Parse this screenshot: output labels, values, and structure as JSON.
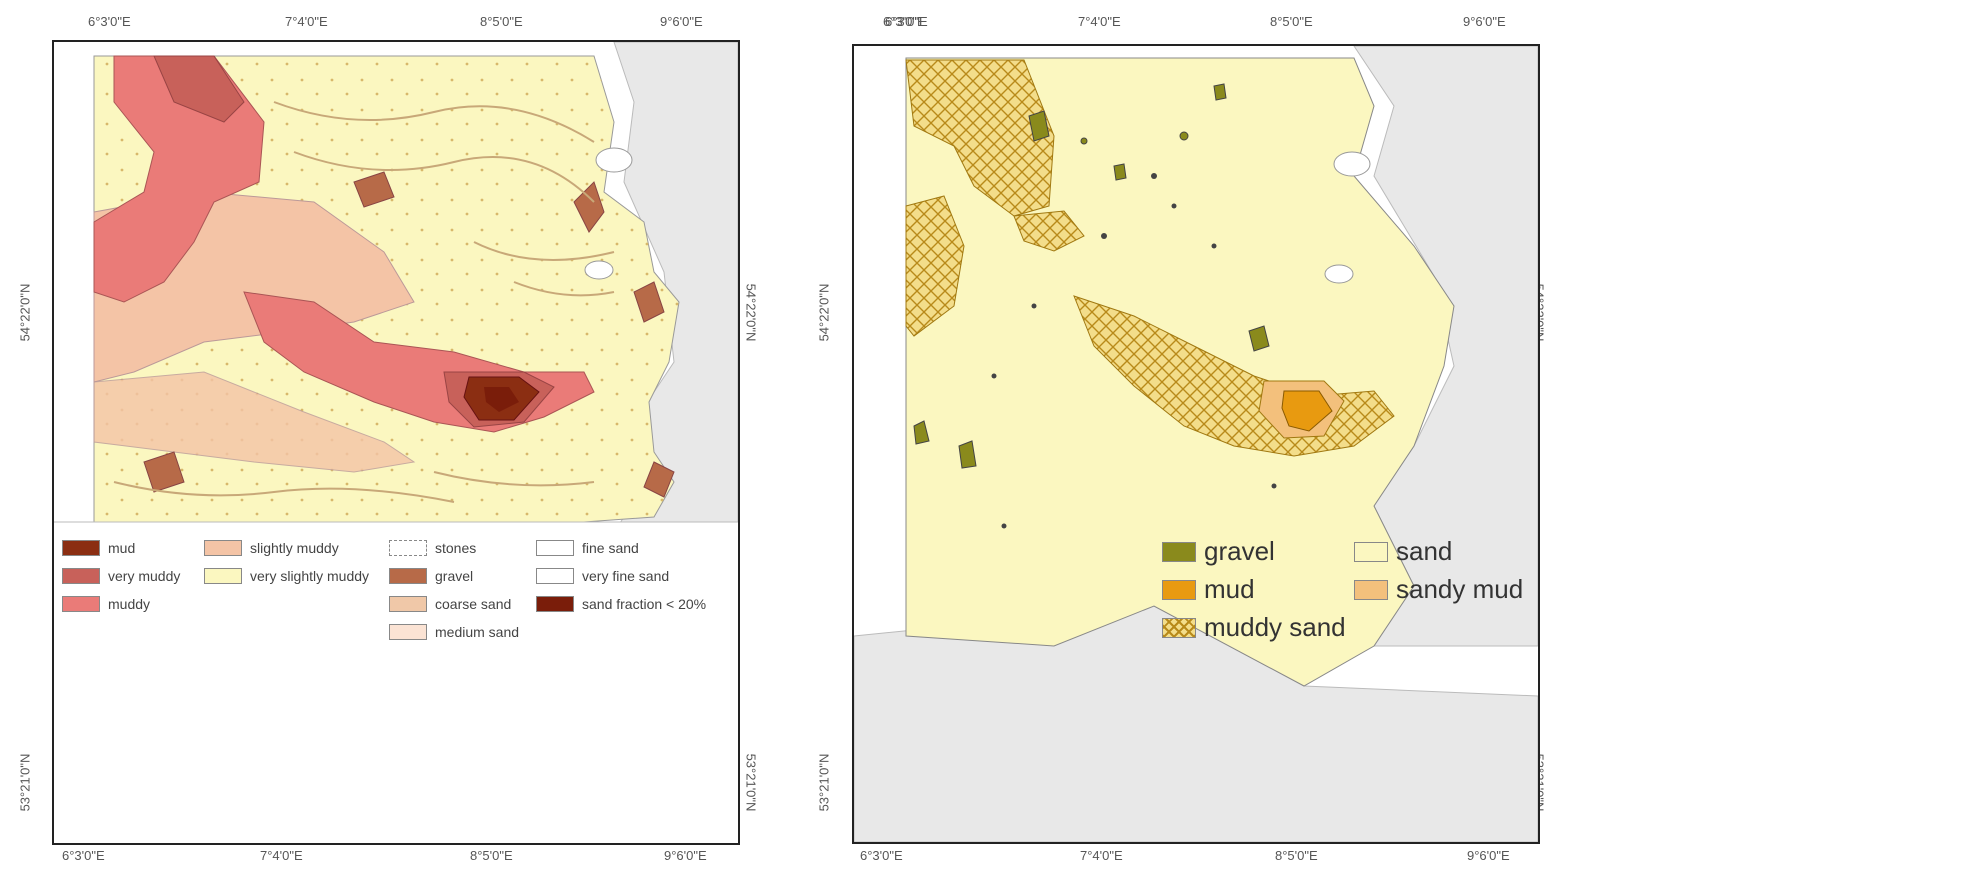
{
  "left_map": {
    "top_ticks": [
      "6°3'0\"E",
      "7°4'0\"E",
      "8°5'0\"E",
      "9°6'0\"E"
    ],
    "bottom_ticks": [
      "6°3'0\"E",
      "7°4'0\"E",
      "8°5'0\"E",
      "9°6'0\"E"
    ],
    "left_ticks": [
      "54°22'0\"N",
      "53°21'0\"N"
    ],
    "right_ticks": [
      "54°22'0\"N",
      "53°21'0\"N"
    ],
    "legend": [
      {
        "label": "mud",
        "color": "#8b2e12"
      },
      {
        "label": "very muddy",
        "color": "#c8615a"
      },
      {
        "label": "muddy",
        "color": "#ea7b78"
      },
      {
        "label": "slightly muddy",
        "color": "#f4c4a6"
      },
      {
        "label": "very slightly muddy",
        "color": "#fbf7c0"
      },
      {
        "label": "stones",
        "color": "#ffffff"
      },
      {
        "label": "gravel",
        "color": "#b76a48"
      },
      {
        "label": "coarse sand",
        "color": "#f0c8a8"
      },
      {
        "label": "medium sand",
        "color": "#fbe3d4"
      },
      {
        "label": "fine sand",
        "color": "#ffffff"
      },
      {
        "label": "very fine sand",
        "color": "#ffffff"
      },
      {
        "label": "sand fraction < 20%",
        "color": "#7a1d0a"
      }
    ]
  },
  "right_map": {
    "top_ticks": [
      "6°3'0\"E",
      "7°4'0\"E",
      "8°5'0\"E",
      "9°6'0\"E"
    ],
    "bottom_ticks": [
      "6°3'0\"E",
      "7°4'0\"E",
      "8°5'0\"E",
      "9°6'0\"E"
    ],
    "left_ticks": [
      "54°22'0\"N",
      "53°21'0\"N"
    ],
    "right_ticks": [
      "54°22'0\"N",
      "53°21'0\"N"
    ],
    "legend": [
      {
        "label": "gravel",
        "color": "#8a8a1c"
      },
      {
        "label": "sand",
        "color": "#fbf7c0"
      },
      {
        "label": "mud",
        "color": "#e89a10"
      },
      {
        "label": "sandy mud",
        "color": "#f3c07c"
      },
      {
        "label": "muddy sand",
        "color": "#f3dd8a"
      }
    ]
  }
}
